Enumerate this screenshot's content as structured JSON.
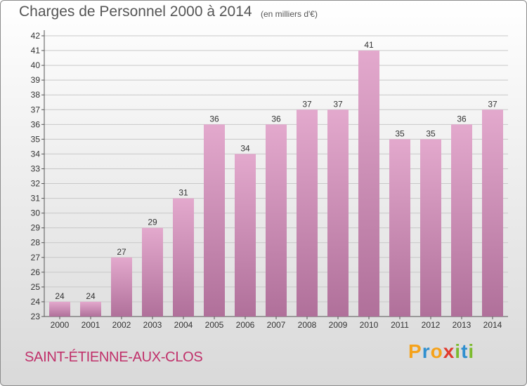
{
  "title": "Charges de Personnel 2000 à 2014",
  "subtitle": "(en milliers d'€)",
  "town": "SAINT-ÉTIENNE-AUX-CLOS",
  "logo": {
    "text": "Proxiti",
    "letters": [
      {
        "ch": "P",
        "color": "#f5a21b"
      },
      {
        "ch": "r",
        "color": "#2f8fcf"
      },
      {
        "ch": "o",
        "color": "#f5a21b"
      },
      {
        "ch": "x",
        "color": "#e03a2e"
      },
      {
        "ch": "i",
        "color": "#7cbb2e"
      },
      {
        "ch": "t",
        "color": "#2f8fcf"
      },
      {
        "ch": "i",
        "color": "#7cbb2e"
      }
    ]
  },
  "colors": {
    "bar_top": "#e3a9cd",
    "bar_bottom": "#b0709a",
    "axis_text": "#333333",
    "grid": "#c8c8c8",
    "town": "#c0306a"
  },
  "chart_data": {
    "type": "bar",
    "categories": [
      "2000",
      "2001",
      "2002",
      "2003",
      "2004",
      "2005",
      "2006",
      "2007",
      "2008",
      "2009",
      "2010",
      "2011",
      "2012",
      "2013",
      "2014"
    ],
    "values": [
      24,
      24,
      27,
      29,
      31,
      36,
      34,
      36,
      37,
      37,
      41,
      35,
      35,
      36,
      37
    ],
    "title": "Charges de Personnel 2000 à 2014",
    "subtitle": "(en milliers d'€)",
    "ylim": [
      23,
      42
    ],
    "yticks": [
      23,
      24,
      25,
      26,
      27,
      28,
      29,
      30,
      31,
      32,
      33,
      34,
      35,
      36,
      37,
      38,
      39,
      40,
      41,
      42
    ],
    "grid": true,
    "data_labels": true
  }
}
